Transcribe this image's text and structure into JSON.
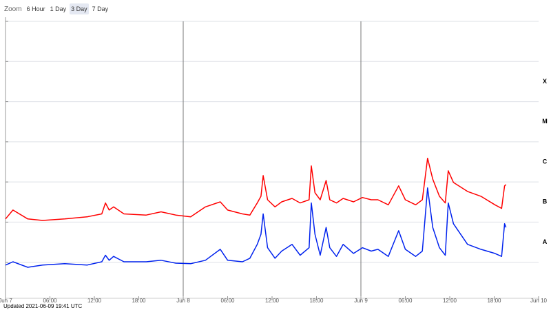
{
  "ui": {
    "zoom_label": "Zoom",
    "zoom_buttons": [
      {
        "label": "6 Hour",
        "active": false
      },
      {
        "label": "1 Day",
        "active": false
      },
      {
        "label": "3 Day",
        "active": true
      },
      {
        "label": "7 Day",
        "active": false
      }
    ]
  },
  "updated": "Updated 2021-06-09 19:41 UTC",
  "chart_data": {
    "type": "line",
    "yscale": "log",
    "grid": true,
    "xlim": [
      0,
      72
    ],
    "xticks": [
      {
        "value": 0,
        "label": "Jun 7"
      },
      {
        "value": 6,
        "label": "06:00"
      },
      {
        "value": 12,
        "label": "12:00"
      },
      {
        "value": 18,
        "label": "18:00"
      },
      {
        "value": 24,
        "label": "Jun 8"
      },
      {
        "value": 30,
        "label": "06:00"
      },
      {
        "value": 36,
        "label": "12:00"
      },
      {
        "value": 42,
        "label": "18:00"
      },
      {
        "value": 48,
        "label": "Jun 9"
      },
      {
        "value": 54,
        "label": "06:00"
      },
      {
        "value": 60,
        "label": "12:00"
      },
      {
        "value": 66,
        "label": "18:00"
      },
      {
        "value": 72,
        "label": "Jun 10"
      }
    ],
    "ylim": [
      1e-09,
      0.01
    ],
    "yticks": [
      1e-08,
      1e-07,
      1e-06,
      1e-05,
      0.0001,
      0.001,
      0.01
    ],
    "class_labels": [
      "A",
      "B",
      "C",
      "M",
      "X"
    ],
    "x": [
      0,
      1,
      3,
      5,
      8,
      11,
      13,
      13.5,
      14,
      14.6,
      16,
      19,
      21,
      23,
      25,
      27,
      29,
      30,
      32,
      33,
      34,
      34.5,
      34.8,
      35.4,
      36.4,
      37.3,
      38.7,
      39.8,
      41,
      41.3,
      41.8,
      42.5,
      43.3,
      43.8,
      44.7,
      45.6,
      47,
      48.2,
      49.4,
      50.3,
      51.7,
      53.1,
      54,
      55.4,
      56.3,
      57,
      57.7,
      58.6,
      59.4,
      59.8,
      60.5,
      62.4,
      64.2,
      66.1,
      67,
      67.4,
      67.6
    ],
    "series": [
      {
        "color": "#ff0000",
        "values": [
          1.2e-07,
          2e-07,
          1.2e-07,
          1.1e-07,
          1.2e-07,
          1.35e-07,
          1.6e-07,
          3e-07,
          2e-07,
          2.4e-07,
          1.6e-07,
          1.5e-07,
          1.8e-07,
          1.5e-07,
          1.35e-07,
          2.4e-07,
          3.2e-07,
          2e-07,
          1.6e-07,
          1.5e-07,
          3e-07,
          4.4e-07,
          1.44e-06,
          3.6e-07,
          2.4e-07,
          3.2e-07,
          3.9e-07,
          3e-07,
          3.6e-07,
          2.5e-06,
          5.4e-07,
          3.6e-07,
          1.09e-06,
          3.6e-07,
          3e-07,
          3.9e-07,
          3.2e-07,
          4.1e-07,
          3.6e-07,
          3.6e-07,
          2.7e-07,
          8e-07,
          3.6e-07,
          2.7e-07,
          3.6e-07,
          3.9e-06,
          1.18e-06,
          4.4e-07,
          3e-07,
          1.9e-06,
          9.7e-07,
          5.8e-07,
          4.4e-07,
          2.7e-07,
          2.2e-07,
          8e-07,
          8.6e-07
        ]
      },
      {
        "color": "#0022ee",
        "values": [
          8.5e-09,
          1.03e-08,
          7.5e-09,
          8.5e-09,
          9.2e-09,
          8.5e-09,
          1.03e-08,
          1.5e-08,
          1.12e-08,
          1.4e-08,
          1.03e-08,
          1.03e-08,
          1.12e-08,
          9.5e-09,
          9.2e-09,
          1.12e-08,
          2.1e-08,
          1.12e-08,
          1.03e-08,
          1.26e-08,
          2.8e-08,
          5e-08,
          1.6e-07,
          2.3e-08,
          1.26e-08,
          1.9e-08,
          2.8e-08,
          1.5e-08,
          2.3e-08,
          3e-07,
          5e-08,
          1.5e-08,
          7.4e-08,
          2.3e-08,
          1.4e-08,
          2.8e-08,
          1.66e-08,
          2.3e-08,
          1.9e-08,
          2.1e-08,
          1.4e-08,
          6.1e-08,
          2.1e-08,
          1.4e-08,
          1.9e-08,
          7.1e-07,
          7.4e-08,
          2.3e-08,
          1.5e-08,
          3e-07,
          9.1e-08,
          2.8e-08,
          2.1e-08,
          1.66e-08,
          1.4e-08,
          9.1e-08,
          7.4e-08
        ]
      }
    ]
  }
}
